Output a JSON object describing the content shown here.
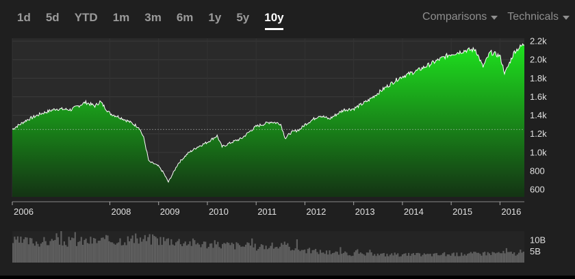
{
  "range_tabs": [
    {
      "label": "1d"
    },
    {
      "label": "5d"
    },
    {
      "label": "YTD"
    },
    {
      "label": "1m"
    },
    {
      "label": "3m"
    },
    {
      "label": "6m"
    },
    {
      "label": "1y"
    },
    {
      "label": "5y"
    },
    {
      "label": "10y"
    }
  ],
  "active_range": "10y",
  "menus": {
    "comparisons_label": "Comparisons",
    "technicals_label": "Technicals"
  },
  "colors": {
    "background": "#1f1f1f",
    "chart_bg": "#2a2a2a",
    "area_top": "#1ee21e",
    "area_bottom": "#143314",
    "price_line": "#ffffff",
    "volume": "#5e5e5e",
    "axis_text": "#e0e0e0"
  },
  "chart_data": {
    "type": "area",
    "x_ticks": [
      "2006",
      "2008",
      "2009",
      "2010",
      "2011",
      "2012",
      "2013",
      "2014",
      "2015",
      "2016"
    ],
    "x_tick_years": [
      2006,
      2008,
      2009,
      2010,
      2011,
      2012,
      2013,
      2014,
      2015,
      2016
    ],
    "xlim": [
      2006,
      2016.5
    ],
    "y_ticks": [
      "600",
      "800",
      "1.0k",
      "1.2k",
      "1.4k",
      "1.6k",
      "1.8k",
      "2.0k",
      "2.2k"
    ],
    "y_tick_values": [
      600,
      800,
      1000,
      1200,
      1400,
      1600,
      1800,
      2000,
      2200
    ],
    "ylim": [
      520,
      2230
    ],
    "reference_line": 1248,
    "series": [
      {
        "x": [
          2006.0,
          2006.3,
          2006.6,
          2006.9,
          2007.2,
          2007.5,
          2007.7,
          2007.8,
          2008.0,
          2008.2,
          2008.4,
          2008.6,
          2008.7,
          2008.8,
          2008.9,
          2009.0,
          2009.1,
          2009.2,
          2009.4,
          2009.6,
          2009.8,
          2010.0,
          2010.2,
          2010.3,
          2010.5,
          2010.7,
          2010.9,
          2011.0,
          2011.3,
          2011.5,
          2011.6,
          2011.7,
          2011.9,
          2012.0,
          2012.3,
          2012.5,
          2012.8,
          2013.0,
          2013.3,
          2013.6,
          2013.9,
          2014.0,
          2014.3,
          2014.6,
          2014.9,
          2015.0,
          2015.3,
          2015.5,
          2015.65,
          2015.8,
          2016.0,
          2016.1,
          2016.3,
          2016.5
        ],
        "values": [
          1250,
          1350,
          1420,
          1470,
          1460,
          1540,
          1500,
          1550,
          1420,
          1380,
          1330,
          1270,
          1150,
          900,
          880,
          850,
          780,
          680,
          880,
          990,
          1060,
          1110,
          1180,
          1060,
          1110,
          1150,
          1240,
          1280,
          1330,
          1310,
          1150,
          1210,
          1250,
          1300,
          1400,
          1360,
          1460,
          1470,
          1560,
          1680,
          1790,
          1820,
          1880,
          1960,
          2040,
          2060,
          2100,
          2110,
          1920,
          2080,
          2040,
          1850,
          2090,
          2170
        ]
      }
    ],
    "volume": {
      "y_ticks": [
        "10B",
        "5B"
      ],
      "y_tick_values": [
        10,
        5
      ],
      "ylim": [
        0,
        14
      ],
      "x": [
        2006.0,
        2007.0,
        2007.8,
        2008.2,
        2008.8,
        2009.3,
        2010.0,
        2010.5,
        2011.0,
        2011.6,
        2012.0,
        2012.5,
        2013.0,
        2014.0,
        2015.0,
        2015.7,
        2016.0,
        2016.5
      ],
      "values": [
        9.5,
        9.2,
        9.8,
        10.2,
        10.5,
        9.8,
        8.2,
        7.8,
        7.0,
        7.5,
        5.5,
        4.5,
        3.8,
        3.5,
        3.6,
        4.2,
        4.4,
        3.9
      ]
    }
  }
}
